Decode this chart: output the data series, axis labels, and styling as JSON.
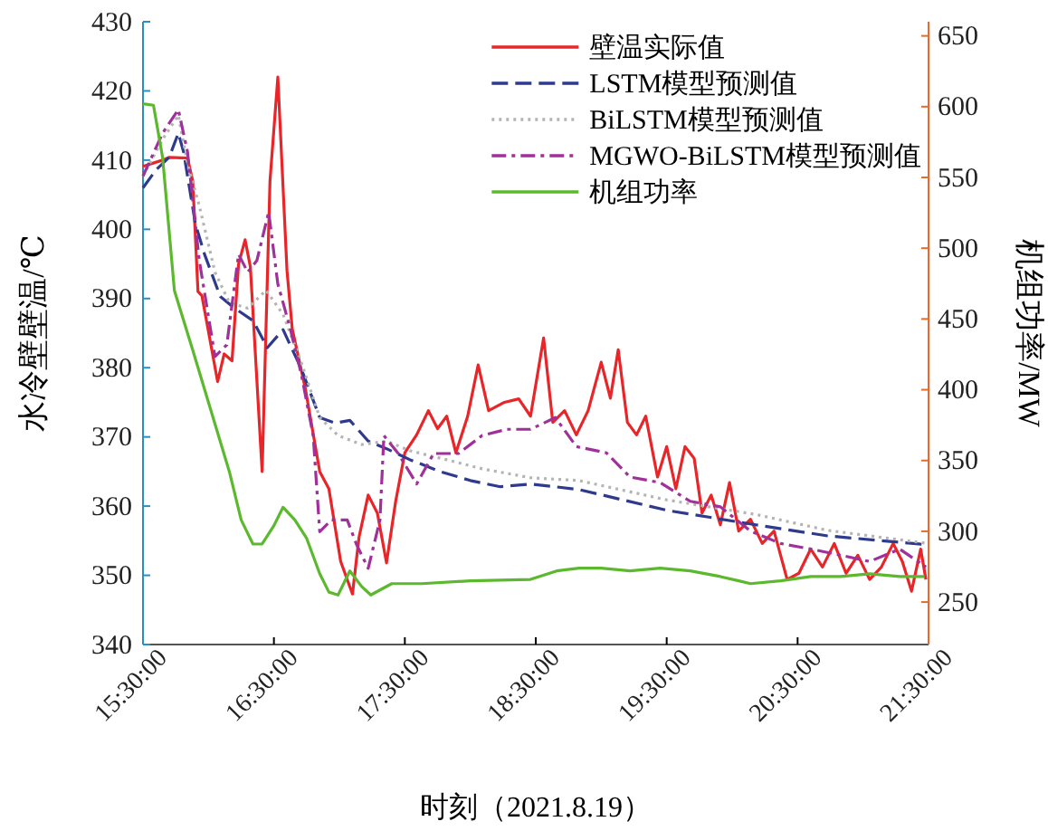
{
  "chart_data": {
    "type": "line",
    "xlabel": "时刻（2021.8.19）",
    "ylabel": "水冷壁壁温/℃",
    "y2label": "机组功率/MW",
    "xlim": [
      15.5,
      21.5
    ],
    "xticks": [
      {
        "value": 15.5,
        "label": "15:30:00"
      },
      {
        "value": 16.5,
        "label": "16:30:00"
      },
      {
        "value": 17.5,
        "label": "17:30:00"
      },
      {
        "value": 18.5,
        "label": "18:30:00"
      },
      {
        "value": 19.5,
        "label": "19:30:00"
      },
      {
        "value": 20.5,
        "label": "20:30:00"
      },
      {
        "value": 21.5,
        "label": "21:30:00"
      }
    ],
    "ylim": [
      340,
      430
    ],
    "yticks": [
      340,
      350,
      360,
      370,
      380,
      390,
      400,
      410,
      420,
      430
    ],
    "y2lim": [
      220,
      660
    ],
    "y2ticks": [
      250,
      300,
      350,
      400,
      450,
      500,
      550,
      600,
      650
    ],
    "legend": "top right",
    "grid": false,
    "series": [
      {
        "name": "壁温实际值",
        "color": "#e8262a",
        "line_style": "solid",
        "x": [
          15.5,
          15.65,
          15.7,
          15.84,
          15.88,
          15.92,
          15.95,
          16.07,
          16.12,
          16.18,
          16.23,
          16.28,
          16.32,
          16.41,
          16.47,
          16.53,
          16.6,
          16.64,
          16.74,
          16.85,
          16.92,
          17.01,
          17.1,
          17.15,
          17.22,
          17.29,
          17.36,
          17.43,
          17.5,
          17.59,
          17.68,
          17.75,
          17.82,
          17.89,
          17.98,
          18.06,
          18.14,
          18.26,
          18.37,
          18.46,
          18.56,
          18.63,
          18.72,
          18.81,
          18.9,
          19.0,
          19.07,
          19.13,
          19.2,
          19.27,
          19.34,
          19.43,
          19.5,
          19.57,
          19.64,
          19.71,
          19.77,
          19.84,
          19.91,
          19.98,
          20.05,
          20.14,
          20.23,
          20.32,
          20.42,
          20.51,
          20.6,
          20.69,
          20.78,
          20.87,
          20.96,
          21.05,
          21.14,
          21.23,
          21.3,
          21.37,
          21.44,
          21.48
        ],
        "values": [
          409.1,
          410,
          410.4,
          410.3,
          407,
          391,
          390.4,
          378,
          382,
          381,
          395,
          398.5,
          394.6,
          365,
          407,
          422,
          394,
          385.6,
          377,
          365,
          362.5,
          352,
          347.3,
          355.5,
          361.6,
          359,
          351.8,
          360.7,
          367.7,
          370.3,
          373.8,
          371.2,
          373,
          367.7,
          373,
          380.4,
          373.8,
          375,
          375.5,
          373,
          384.3,
          372.1,
          373.8,
          370.3,
          373.8,
          380.8,
          375.6,
          382.6,
          372.1,
          370.3,
          373,
          364.2,
          368.6,
          362.5,
          368.6,
          366.9,
          359,
          361.6,
          357.3,
          363.4,
          356.4,
          358.1,
          354.6,
          356.4,
          349.4,
          350.3,
          353.8,
          351.2,
          354.6,
          350.3,
          352.9,
          349.4,
          351.2,
          354.6,
          352,
          347.7,
          353.8,
          349.4
        ]
      },
      {
        "name": "LSTM模型预测值",
        "color": "#2e3a8c",
        "line_style": "dashed",
        "x": [
          15.5,
          15.6,
          15.7,
          15.77,
          15.81,
          15.9,
          15.97,
          16.09,
          16.2,
          16.34,
          16.45,
          16.57,
          16.71,
          16.85,
          16.97,
          17.08,
          17.22,
          17.36,
          17.54,
          17.77,
          18.0,
          18.23,
          18.46,
          18.83,
          19.5,
          20.18,
          20.73,
          21.5
        ],
        "values": [
          406,
          408.6,
          410.4,
          413.9,
          411.2,
          400.8,
          396.4,
          390.3,
          388.6,
          386.8,
          382.9,
          385.5,
          379.8,
          372.8,
          372,
          372.4,
          369.4,
          368.3,
          366.7,
          365,
          363.7,
          362.8,
          363.2,
          362.4,
          359.4,
          357.3,
          355.7,
          354.4
        ]
      },
      {
        "name": "BiLSTM模型预测值",
        "color": "#b4b4b4",
        "line_style": "dotted",
        "x": [
          15.5,
          15.65,
          15.77,
          15.84,
          15.93,
          16.05,
          16.16,
          16.3,
          16.44,
          16.57,
          16.71,
          16.85,
          16.99,
          17.17,
          17.36,
          17.54,
          17.82,
          18.09,
          18.46,
          18.83,
          19.5,
          20.18,
          20.73,
          21.5
        ],
        "values": [
          407.7,
          413,
          416.5,
          409.5,
          403.4,
          393.8,
          389.4,
          388.6,
          391.2,
          387.7,
          380.7,
          372.8,
          370.2,
          368.9,
          369.4,
          368,
          366.7,
          365.4,
          364.1,
          363.7,
          360.9,
          358.8,
          356.5,
          354.6
        ]
      },
      {
        "name": "MGWO-BiLSTM模型预测值",
        "color": "#a0309a",
        "line_style": "dashdot",
        "x": [
          15.5,
          15.65,
          15.77,
          15.84,
          15.93,
          16.05,
          16.14,
          16.23,
          16.3,
          16.37,
          16.46,
          16.53,
          16.62,
          16.71,
          16.8,
          16.85,
          16.94,
          17.06,
          17.13,
          17.22,
          17.31,
          17.34,
          17.45,
          17.59,
          17.72,
          17.91,
          18.09,
          18.28,
          18.46,
          18.65,
          18.81,
          19.04,
          19.22,
          19.45,
          19.68,
          19.91,
          20.14,
          20.37,
          20.6,
          20.83,
          21.05,
          21.28,
          21.48
        ],
        "values": [
          407.7,
          413.9,
          417.3,
          411.2,
          395.5,
          381.6,
          383.3,
          396.4,
          393.8,
          395.5,
          402.5,
          392.1,
          386,
          379,
          370.2,
          356.3,
          358,
          358,
          354.5,
          351,
          358,
          370.2,
          367.6,
          363.2,
          367.6,
          367.6,
          370.2,
          371.1,
          371.1,
          372.8,
          368.6,
          367.7,
          364.2,
          363.4,
          360.7,
          359.9,
          356.4,
          354.6,
          353.8,
          352.9,
          352,
          353.8,
          351.2
        ]
      },
      {
        "name": "机组功率",
        "color": "#5cb82e",
        "line_style": "solid",
        "axis": "y2",
        "x": [
          15.5,
          15.58,
          15.65,
          15.74,
          15.88,
          16.02,
          16.16,
          16.25,
          16.34,
          16.41,
          16.5,
          16.57,
          16.66,
          16.75,
          16.85,
          16.92,
          16.99,
          17.08,
          17.17,
          17.24,
          17.4,
          17.63,
          18.0,
          18.46,
          18.66,
          18.83,
          19.0,
          19.22,
          19.45,
          19.68,
          19.91,
          20.05,
          20.14,
          20.37,
          20.6,
          20.83,
          21.05,
          21.28,
          21.47
        ],
        "values": [
          602,
          601,
          564,
          470,
          428,
          385,
          342,
          308,
          291,
          291,
          304,
          317,
          308,
          295,
          270,
          257,
          255,
          272,
          261,
          255,
          263,
          263,
          265,
          266,
          272,
          274,
          274,
          272,
          274,
          272,
          268,
          265,
          263,
          265,
          268,
          268,
          270,
          268,
          268
        ]
      }
    ]
  }
}
